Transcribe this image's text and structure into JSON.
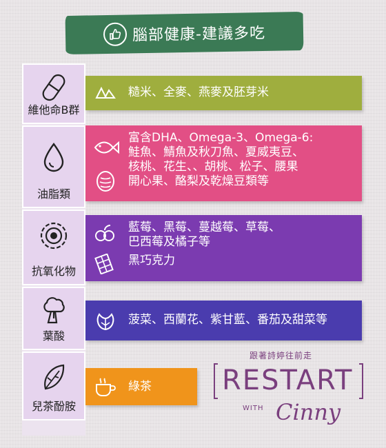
{
  "title": "腦部健康-建議多吃",
  "categories": [
    {
      "label": "維他命B群",
      "icon": "capsule-icon"
    },
    {
      "label": "油脂類",
      "icon": "oil-drop-icon"
    },
    {
      "label": "抗氧化物",
      "icon": "antioxidant-icon"
    },
    {
      "label": "葉酸",
      "icon": "broccoli-icon"
    },
    {
      "label": "兒茶酚胺",
      "icon": "leaf-icon"
    }
  ],
  "foods": {
    "b_group": "糙米、全麥、燕麥及胚芽米",
    "oils": [
      "富含DHA、Omega-3、Omega-6:",
      "鮭魚、鯖魚及秋刀魚、夏威夷豆、",
      "核桃、花生、、胡桃、松子、腰果",
      "開心果、酪梨及乾燥豆類等"
    ],
    "antioxidants": [
      "藍莓、黑莓、蔓越莓、草莓、",
      "巴西莓及橘子等",
      "黑巧克力"
    ],
    "folate": "菠菜、西蘭花、紫甘藍、番茄及甜菜等",
    "catecholamine": "綠茶"
  },
  "logo": {
    "tagline": "跟著詩婷往前走",
    "name": "RESTART",
    "with": "WITH",
    "signature": "Cinny"
  },
  "colors": {
    "banner": "#3b7a55",
    "b_group_bar": "#9fae3e",
    "oil_bar": "#e24f85",
    "antioxidant_bar": "#7b3bb0",
    "folate_bar": "#4a3cae",
    "tea_bar": "#f0941b",
    "logo": "#7a3f7e"
  }
}
